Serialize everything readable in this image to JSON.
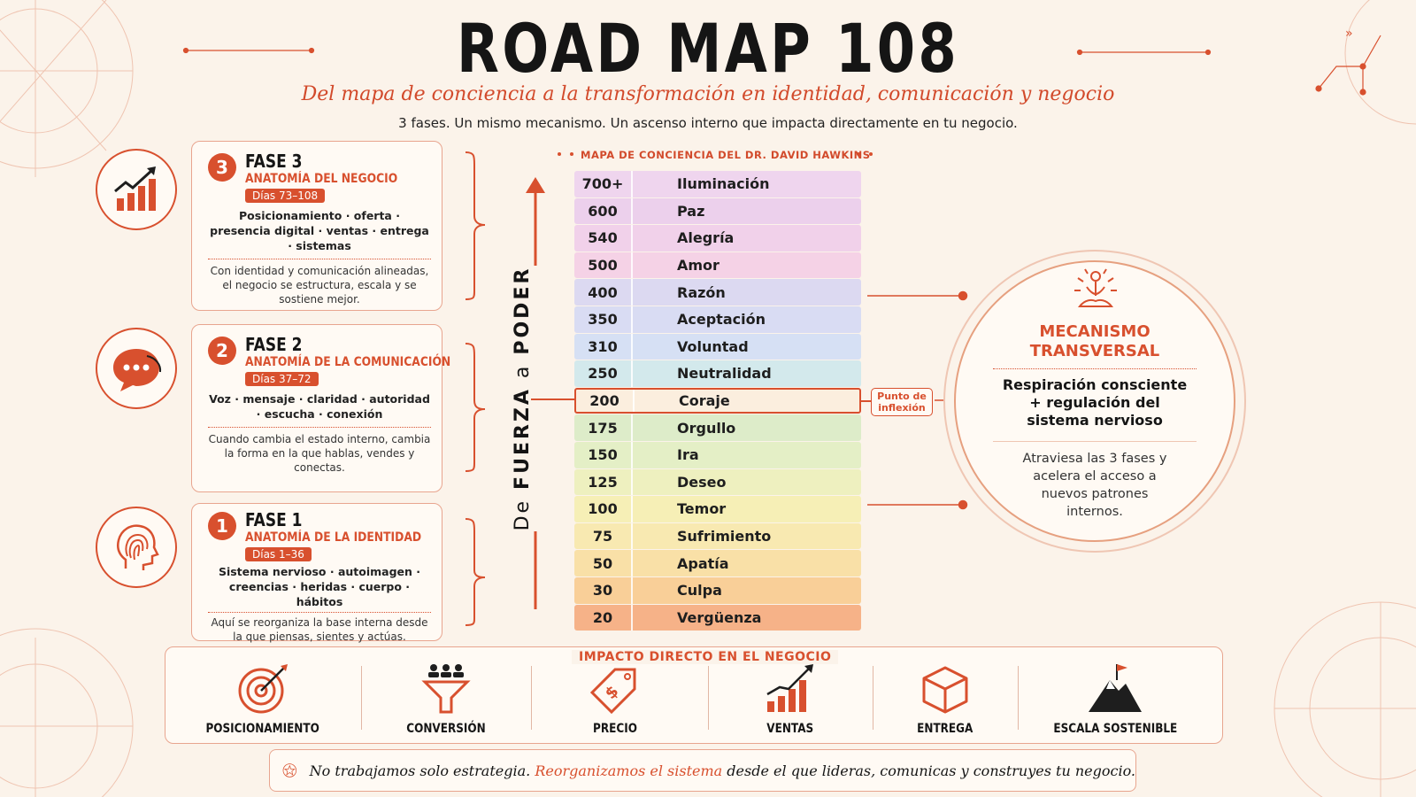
{
  "header": {
    "title": "ROAD MAP 108",
    "subtitle": "Del mapa de conciencia a la transformación en identidad, comunicación y negocio",
    "tagline": "3 fases. Un mismo mecanismo. Un ascenso interno que impacta directamente en tu negocio."
  },
  "phases": [
    {
      "number": "3",
      "name": "FASE 3",
      "title": "ANATOMÍA DEL NEGOCIO",
      "days": "Días 73–108",
      "topics": "Posicionamiento · oferta · presencia digital · ventas · entrega · sistemas",
      "note": "Con identidad y comunicación alineadas, el negocio se estructura, escala y se sostiene mejor.",
      "icon": "growth-chart-icon"
    },
    {
      "number": "2",
      "name": "FASE 2",
      "title": "ANATOMÍA DE LA COMUNICACIÓN",
      "days": "Días 37–72",
      "topics": "Voz · mensaje · claridad · autoridad · escucha · conexión",
      "note": "Cuando cambia el estado interno, cambia la forma en la que hablas, vendes y conectas.",
      "icon": "speech-bubble-icon"
    },
    {
      "number": "1",
      "name": "FASE 1",
      "title": "ANATOMÍA DE LA IDENTIDAD",
      "days": "Días 1–36",
      "topics": "Sistema nervioso · autoimagen · creencias · heridas · cuerpo · hábitos",
      "note": "Aquí se reorganiza la base interna desde la que piensas, sientes y actúas.",
      "icon": "fingerprint-head-icon"
    }
  ],
  "scale": {
    "title": "MAPA DE CONCIENCIA DEL DR. DAVID HAWKINS",
    "axis_prefix": "De ",
    "axis_from": "FUERZA",
    "axis_mid": " a ",
    "axis_to": "PODER",
    "inflection_label": "Punto de inflexión",
    "levels": [
      {
        "value": "700+",
        "name": "Iluminación",
        "color": "#efd5ee"
      },
      {
        "value": "600",
        "name": "Paz",
        "color": "#ecd0ec"
      },
      {
        "value": "540",
        "name": "Alegría",
        "color": "#f1d1ea"
      },
      {
        "value": "500",
        "name": "Amor",
        "color": "#f5d2e6"
      },
      {
        "value": "400",
        "name": "Razón",
        "color": "#dcd9f1"
      },
      {
        "value": "350",
        "name": "Aceptación",
        "color": "#d9dcf3"
      },
      {
        "value": "310",
        "name": "Voluntad",
        "color": "#d6e0f4"
      },
      {
        "value": "250",
        "name": "Neutralidad",
        "color": "#d3e9ec"
      },
      {
        "value": "200",
        "name": "Coraje",
        "color": "#fbeede",
        "highlight": true
      },
      {
        "value": "175",
        "name": "Orgullo",
        "color": "#ddecc9"
      },
      {
        "value": "150",
        "name": "Ira",
        "color": "#e4efc6"
      },
      {
        "value": "125",
        "name": "Deseo",
        "color": "#eef0bf"
      },
      {
        "value": "100",
        "name": "Temor",
        "color": "#f6efb6"
      },
      {
        "value": "75",
        "name": "Sufrimiento",
        "color": "#f8e9b1"
      },
      {
        "value": "50",
        "name": "Apatía",
        "color": "#f9e0a7"
      },
      {
        "value": "30",
        "name": "Culpa",
        "color": "#f9cf98"
      },
      {
        "value": "20",
        "name": "Vergüenza",
        "color": "#f6b288"
      }
    ]
  },
  "mechanism": {
    "title": "MECANISMO TRANSVERSAL",
    "main": "Respiración consciente + regulación del sistema nervioso",
    "sub": "Atraviesa las 3 fases y acelera el acceso a nuevos patrones internos.",
    "icon": "meditation-icon"
  },
  "impact": {
    "title": "IMPACTO DIRECTO EN EL NEGOCIO",
    "items": [
      {
        "label": "POSICIONAMIENTO",
        "icon": "target-icon"
      },
      {
        "label": "CONVERSIÓN",
        "icon": "funnel-icon"
      },
      {
        "label": "PRECIO",
        "icon": "price-tag-icon"
      },
      {
        "label": "VENTAS",
        "icon": "sales-chart-icon"
      },
      {
        "label": "ENTREGA",
        "icon": "box-icon"
      },
      {
        "label": "ESCALA SOSTENIBLE",
        "icon": "mountain-flag-icon"
      }
    ]
  },
  "footer": {
    "text_start": "No trabajamos solo estrategia.",
    "text_highlight": "Reorganizamos el sistema",
    "text_end": "desde el que lideras, comunicas y construyes tu negocio.",
    "icon": "star-icon"
  },
  "colors": {
    "accent": "#d8502e",
    "background": "#fbf3ea"
  }
}
